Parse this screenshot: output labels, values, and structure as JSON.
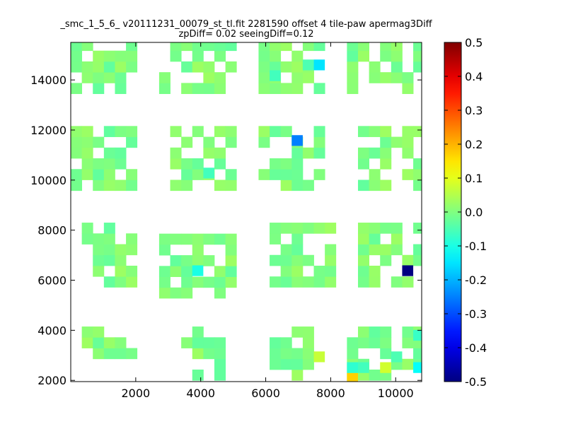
{
  "chart_data": {
    "type": "heatmap",
    "title_lines": [
      "_smc_1_5_6_ v20111231_00079_st_tl.fit 2281590 offset 4 tile-paw apermag3Diff",
      "zpDiff= 0.02 seeingDiff=0.12"
    ],
    "xlabel": "",
    "ylabel": "",
    "xlim": [
      0,
      10800
    ],
    "ylim": [
      1950,
      15500
    ],
    "xticks": [
      2000,
      4000,
      6000,
      8000,
      10000
    ],
    "yticks": [
      2000,
      4000,
      6000,
      8000,
      10000,
      12000,
      14000
    ],
    "colorbar": {
      "colormap": "jet",
      "vmin": -0.5,
      "vmax": 0.5,
      "ticks": [
        -0.5,
        -0.4,
        -0.3,
        -0.2,
        -0.1,
        0.0,
        0.1,
        0.2,
        0.3,
        0.4,
        0.5
      ]
    },
    "cell_width": 340,
    "cell_height": 430,
    "default_value": 0.0,
    "blocks": [
      {
        "x": [
          340,
          2040
        ],
        "y": [
          2860,
          4150
        ]
      },
      {
        "x": [
          3400,
          4760
        ],
        "y": [
          2000,
          4150
        ]
      },
      {
        "x": [
          6120,
          7480
        ],
        "y": [
          2000,
          4150
        ]
      },
      {
        "x": [
          8500,
          10800
        ],
        "y": [
          2000,
          4150
        ]
      },
      {
        "x": [
          340,
          2040
        ],
        "y": [
          5720,
          7880
        ]
      },
      {
        "x": [
          2720,
          5100
        ],
        "y": [
          5280,
          7450
        ]
      },
      {
        "x": [
          6120,
          8160
        ],
        "y": [
          5720,
          7880
        ]
      },
      {
        "x": [
          8840,
          10800
        ],
        "y": [
          5720,
          7880
        ]
      },
      {
        "x": [
          0,
          2040
        ],
        "y": [
          9580,
          11740
        ]
      },
      {
        "x": [
          3060,
          5100
        ],
        "y": [
          9580,
          11740
        ]
      },
      {
        "x": [
          5780,
          7820
        ],
        "y": [
          9580,
          11740
        ]
      },
      {
        "x": [
          8840,
          10800
        ],
        "y": [
          9580,
          11740
        ]
      },
      {
        "x": [
          0,
          2040
        ],
        "y": [
          13450,
          15600
        ]
      },
      {
        "x": [
          2720,
          5100
        ],
        "y": [
          13450,
          15600
        ]
      },
      {
        "x": [
          5780,
          7820
        ],
        "y": [
          13450,
          15600
        ]
      },
      {
        "x": [
          8500,
          10800
        ],
        "y": [
          13450,
          15600
        ]
      }
    ],
    "highlight_cells": [
      {
        "x": 7650,
        "y": 14600,
        "value": -0.15
      },
      {
        "x": 6970,
        "y": 11580,
        "value": -0.25
      },
      {
        "x": 10370,
        "y": 6380,
        "value": -0.5
      },
      {
        "x": 3910,
        "y": 6380,
        "value": -0.1
      },
      {
        "x": 10710,
        "y": 3800,
        "value": -0.07
      },
      {
        "x": 10710,
        "y": 2510,
        "value": -0.12
      },
      {
        "x": 8670,
        "y": 2080,
        "value": 0.17
      },
      {
        "x": 9690,
        "y": 2510,
        "value": 0.08
      },
      {
        "x": 7650,
        "y": 2940,
        "value": 0.07
      },
      {
        "x": 8670,
        "y": 2510,
        "value": -0.08
      },
      {
        "x": 9010,
        "y": 2510,
        "value": -0.06
      },
      {
        "x": 10030,
        "y": 2940,
        "value": -0.05
      },
      {
        "x": 6290,
        "y": 14170,
        "value": -0.06
      },
      {
        "x": 7310,
        "y": 14600,
        "value": -0.05
      },
      {
        "x": 4250,
        "y": 10280,
        "value": -0.06
      }
    ]
  }
}
